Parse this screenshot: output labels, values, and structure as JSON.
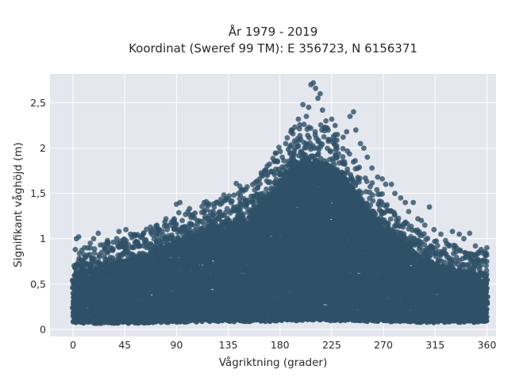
{
  "chart_data": {
    "type": "scatter",
    "title_line1": "År 1979 - 2019",
    "title_line2": "Koordinat (Sweref 99 TM): E 356723, N 6156371",
    "xlabel": "Vågriktning (grader)",
    "ylabel": "Signifikant våghöjd (m)",
    "xlim": [
      -20,
      368
    ],
    "ylim": [
      -0.08,
      2.82
    ],
    "x_ticks": [
      0,
      45,
      90,
      135,
      180,
      225,
      270,
      315,
      360
    ],
    "x_tick_labels": [
      "0",
      "45",
      "90",
      "135",
      "180",
      "225",
      "270",
      "315",
      "360"
    ],
    "y_ticks": [
      0,
      0.5,
      1,
      1.5,
      2,
      2.5
    ],
    "y_tick_labels": [
      "0",
      "0,5",
      "1",
      "1,5",
      "2",
      "2,5"
    ],
    "grid": true,
    "marker_color": "#2f5168",
    "plot_bg": "#e5e7ef",
    "series": [
      {
        "values_x": [
          0,
          10,
          20,
          30,
          40,
          50,
          60,
          70,
          80,
          90,
          100,
          110,
          120,
          130,
          140,
          150,
          160,
          170,
          180,
          190,
          200,
          210,
          220,
          230,
          240,
          250,
          260,
          270,
          280,
          290,
          300,
          310,
          320,
          330,
          340,
          350,
          360
        ],
        "values_y_min": [
          0.09,
          0.08,
          0.08,
          0.08,
          0.08,
          0.08,
          0.08,
          0.09,
          0.09,
          0.09,
          0.09,
          0.1,
          0.1,
          0.1,
          0.1,
          0.1,
          0.1,
          0.1,
          0.11,
          0.11,
          0.11,
          0.11,
          0.11,
          0.11,
          0.11,
          0.1,
          0.1,
          0.1,
          0.1,
          0.1,
          0.09,
          0.09,
          0.09,
          0.09,
          0.09,
          0.09,
          0.09
        ],
        "values_y_dense_max": [
          0.58,
          0.62,
          0.65,
          0.68,
          0.7,
          0.74,
          0.78,
          0.84,
          0.9,
          0.95,
          1.0,
          1.03,
          1.08,
          1.12,
          1.15,
          1.2,
          1.3,
          1.42,
          1.6,
          1.75,
          1.82,
          1.85,
          1.82,
          1.72,
          1.6,
          1.42,
          1.25,
          1.12,
          1.0,
          0.9,
          0.8,
          0.72,
          0.68,
          0.65,
          0.62,
          0.6,
          0.58
        ],
        "outliers": [
          [
            2,
            0.88
          ],
          [
            3,
            1.0
          ],
          [
            5,
            1.02
          ],
          [
            10,
            0.9
          ],
          [
            15,
            0.95
          ],
          [
            18,
            1.0
          ],
          [
            22,
            1.06
          ],
          [
            25,
            0.85
          ],
          [
            30,
            0.98
          ],
          [
            33,
            0.9
          ],
          [
            38,
            1.0
          ],
          [
            40,
            1.08
          ],
          [
            46,
            1.1
          ],
          [
            50,
            1.05
          ],
          [
            55,
            0.97
          ],
          [
            60,
            1.03
          ],
          [
            68,
            1.09
          ],
          [
            75,
            1.05
          ],
          [
            82,
            1.1
          ],
          [
            88,
            1.22
          ],
          [
            90,
            1.38
          ],
          [
            93,
            1.4
          ],
          [
            95,
            1.2
          ],
          [
            100,
            1.3
          ],
          [
            104,
            1.25
          ],
          [
            108,
            1.2
          ],
          [
            112,
            1.29
          ],
          [
            118,
            1.37
          ],
          [
            122,
            1.3
          ],
          [
            128,
            1.38
          ],
          [
            132,
            1.42
          ],
          [
            140,
            1.48
          ],
          [
            142,
            1.61
          ],
          [
            145,
            1.58
          ],
          [
            150,
            1.42
          ],
          [
            155,
            1.47
          ],
          [
            160,
            1.49
          ],
          [
            165,
            1.5
          ],
          [
            170,
            1.62
          ],
          [
            175,
            1.73
          ],
          [
            178,
            1.85
          ],
          [
            182,
            1.9
          ],
          [
            185,
            2.05
          ],
          [
            190,
            2.2
          ],
          [
            193,
            2.0
          ],
          [
            196,
            2.32
          ],
          [
            198,
            2.1
          ],
          [
            200,
            2.48
          ],
          [
            203,
            2.35
          ],
          [
            205,
            2.45
          ],
          [
            207,
            2.7
          ],
          [
            209,
            2.72
          ],
          [
            211,
            2.66
          ],
          [
            213,
            2.55
          ],
          [
            215,
            2.6
          ],
          [
            217,
            2.42
          ],
          [
            220,
            2.3
          ],
          [
            222,
            2.2
          ],
          [
            225,
            2.32
          ],
          [
            228,
            2.25
          ],
          [
            230,
            2.15
          ],
          [
            235,
            2.12
          ],
          [
            238,
            2.18
          ],
          [
            241,
            2.35
          ],
          [
            244,
            2.4
          ],
          [
            246,
            2.2
          ],
          [
            250,
            2.05
          ],
          [
            253,
            2.0
          ],
          [
            256,
            1.9
          ],
          [
            260,
            1.78
          ],
          [
            265,
            1.68
          ],
          [
            269,
            1.66
          ],
          [
            272,
            1.6
          ],
          [
            277,
            1.6
          ],
          [
            280,
            1.5
          ],
          [
            285,
            1.45
          ],
          [
            289,
            1.4
          ],
          [
            292,
            1.3
          ],
          [
            296,
            1.4
          ],
          [
            300,
            1.22
          ],
          [
            303,
            1.2
          ],
          [
            306,
            1.15
          ],
          [
            310,
            1.35
          ],
          [
            314,
            1.1
          ],
          [
            320,
            1.05
          ],
          [
            324,
            0.98
          ],
          [
            330,
            1.08
          ],
          [
            336,
            1.05
          ],
          [
            340,
            1.0
          ],
          [
            345,
            1.06
          ],
          [
            350,
            0.92
          ],
          [
            355,
            0.88
          ],
          [
            358,
            0.75
          ],
          [
            360,
            0.9
          ]
        ]
      }
    ]
  }
}
